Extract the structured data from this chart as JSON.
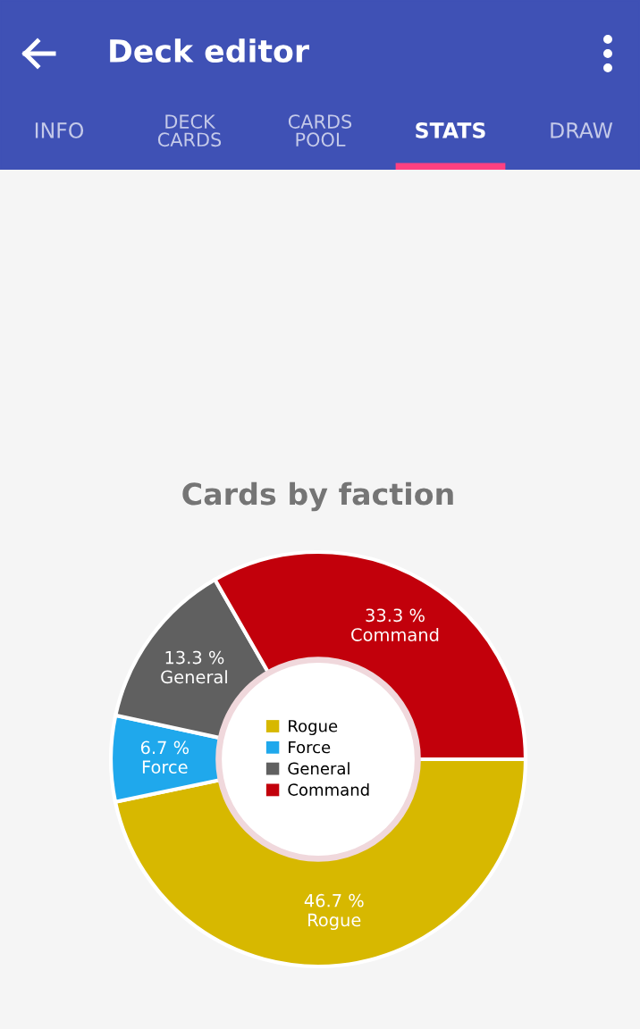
{
  "chart_data": [
    {
      "type": "other",
      "title": "Deck editor",
      "categories": [
        "INFO",
        "DECK\nCARDS",
        "CARDS\nPOOL",
        "STATS",
        "DRAW"
      ],
      "colors": [
        "#3f51b5",
        "#ff4081"
      ]
    },
    {
      "type": "donut",
      "title": "Cards by faction",
      "categories": [
        "Rogue",
        "Force",
        "General",
        "Command"
      ],
      "values": [
        46.7,
        6.7,
        13.3,
        33.3
      ],
      "colors": [
        "#d7b800",
        "#1fa8ec",
        "#606060",
        "#c2000b"
      ],
      "value_labels": [
        "46.7 %",
        "6.7 %",
        "13.3 %",
        "33.3 %"
      ],
      "legend": "center"
    }
  ]
}
